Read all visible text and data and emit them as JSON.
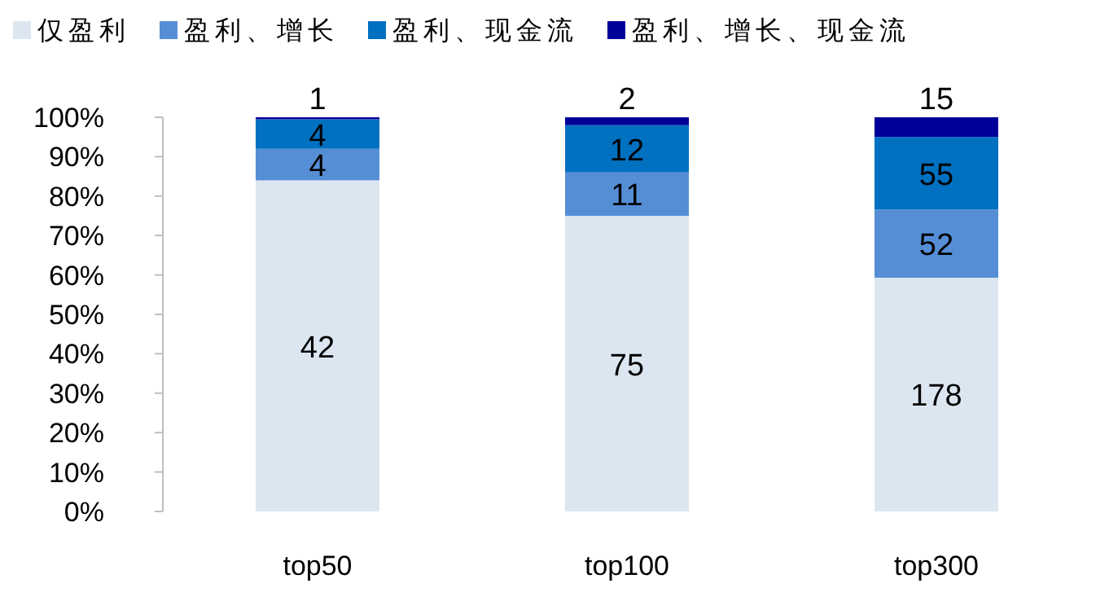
{
  "chart_data": {
    "type": "bar",
    "stacked": true,
    "categories": [
      "top50",
      "top100",
      "top300"
    ],
    "series": [
      {
        "name": "仅盈利",
        "color": "#dce6f1",
        "values": [
          84,
          75,
          59.3
        ]
      },
      {
        "name": "盈利、增长",
        "color": "#558ed5",
        "values": [
          8,
          11,
          17.3
        ]
      },
      {
        "name": "盈利、现金流",
        "color": "#0070c0",
        "values": [
          7.5,
          12,
          18.4
        ]
      },
      {
        "name": "盈利、增长、现金流",
        "color": "#000099",
        "values": [
          0.5,
          2,
          5
        ]
      }
    ],
    "annotations": [
      "42",
      "4",
      "4",
      "1",
      "75",
      "11",
      "12",
      "2",
      "178",
      "52",
      "55",
      "15"
    ],
    "ylim": [
      0,
      100
    ],
    "yticks": [
      {
        "value": 0,
        "label": "0%"
      },
      {
        "value": 10,
        "label": "10%"
      },
      {
        "value": 20,
        "label": "20%"
      },
      {
        "value": 30,
        "label": "30%"
      },
      {
        "value": 40,
        "label": "40%"
      },
      {
        "value": 50,
        "label": "50%"
      },
      {
        "value": 60,
        "label": "60%"
      },
      {
        "value": 70,
        "label": "70%"
      },
      {
        "value": 80,
        "label": "80%"
      },
      {
        "value": 90,
        "label": "90%"
      },
      {
        "value": 100,
        "label": "100%"
      }
    ],
    "grid": false,
    "legend": "top"
  }
}
